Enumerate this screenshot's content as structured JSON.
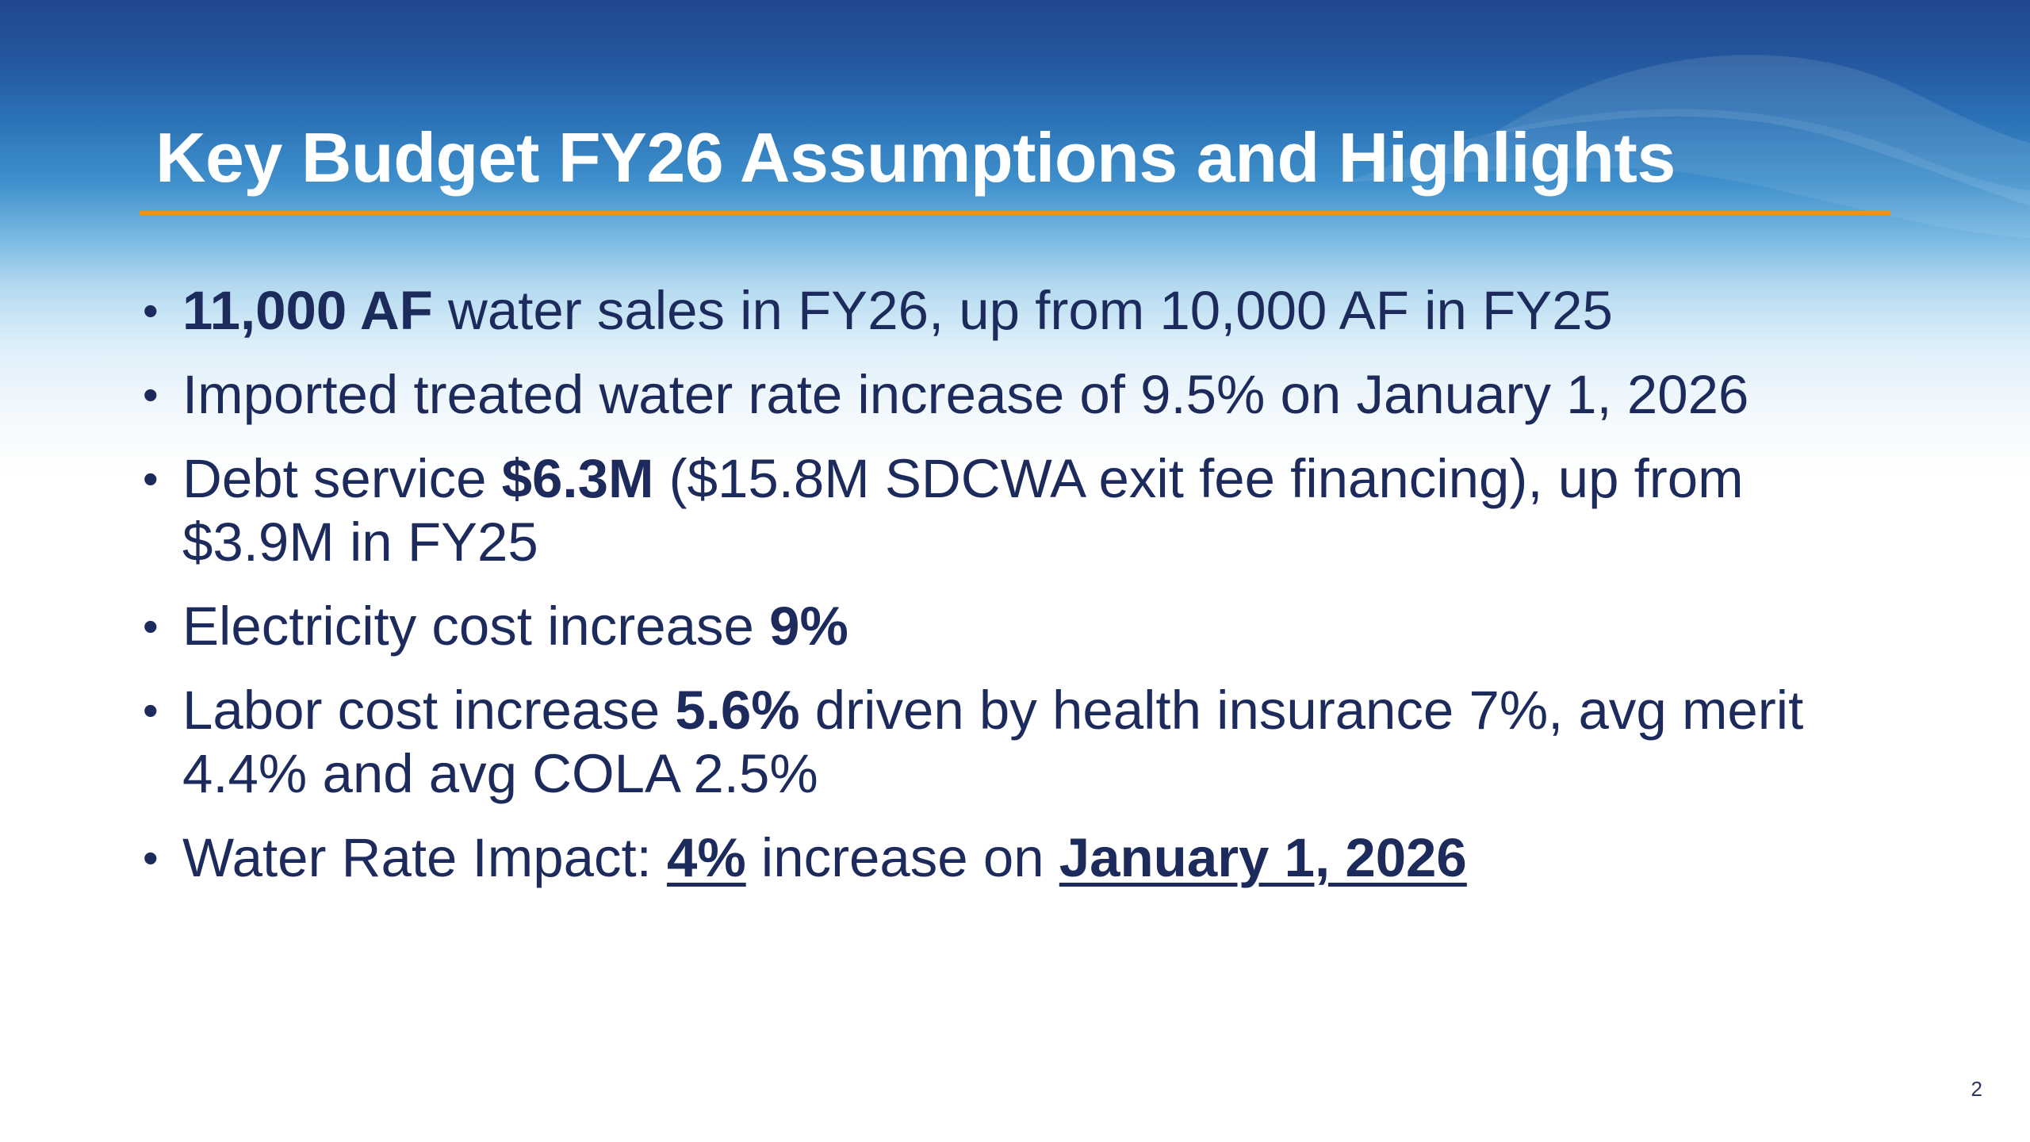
{
  "slide": {
    "title": "Key Budget FY26 Assumptions and Highlights",
    "page_number": "2",
    "bullet_marker": "•",
    "bullets": [
      {
        "bold_lead": "11,000 AF",
        "rest": " water sales in FY26, up from 10,000 AF in FY25"
      },
      {
        "text": "Imported treated water rate increase of 9.5% on January 1, 2026"
      },
      {
        "pre": "Debt service ",
        "bold": "$6.3M",
        "post": " ($15.8M SDCWA exit fee financing), up from $3.9M in FY25"
      },
      {
        "pre": "Electricity cost increase ",
        "bold": "9%"
      },
      {
        "pre": "Labor cost increase ",
        "bold": "5.6%",
        "post": " driven by health insurance 7%, avg merit 4.4% and avg COLA 2.5%"
      },
      {
        "pre": "Water Rate Impact: ",
        "bold_underline_1": "4%",
        "mid": " increase on ",
        "bold_underline_2": "January 1, 2026"
      }
    ]
  },
  "colors": {
    "title_text": "#ffffff",
    "title_rule": "#e8951b",
    "body_text": "#1d2b5c",
    "header_top": "#21488f"
  }
}
